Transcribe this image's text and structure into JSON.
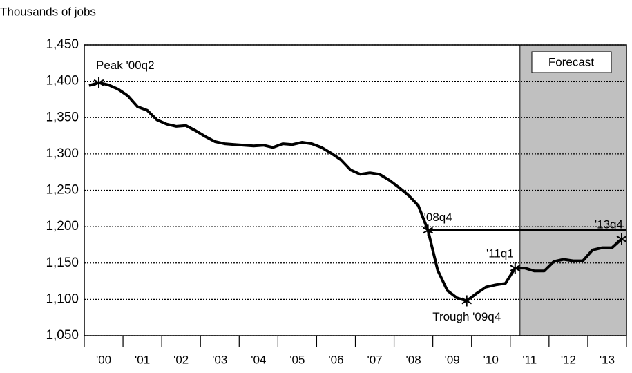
{
  "chart_data": {
    "type": "line",
    "y_axis_title": "Thousands of jobs",
    "xlim": [
      2000,
      2014
    ],
    "xticks": [
      {
        "value": 2000,
        "label": "'00"
      },
      {
        "value": 2001,
        "label": "'01"
      },
      {
        "value": 2002,
        "label": "'02"
      },
      {
        "value": 2003,
        "label": "'03"
      },
      {
        "value": 2004,
        "label": "'04"
      },
      {
        "value": 2005,
        "label": "'05"
      },
      {
        "value": 2006,
        "label": "'06"
      },
      {
        "value": 2007,
        "label": "'07"
      },
      {
        "value": 2008,
        "label": "'08"
      },
      {
        "value": 2009,
        "label": "'09"
      },
      {
        "value": 2010,
        "label": "'10"
      },
      {
        "value": 2011,
        "label": "'11"
      },
      {
        "value": 2012,
        "label": "'12"
      },
      {
        "value": 2013,
        "label": "'13"
      }
    ],
    "ylim": [
      1050,
      1450
    ],
    "yticks": [
      {
        "value": 1050,
        "label": "1,050"
      },
      {
        "value": 1100,
        "label": "1,100"
      },
      {
        "value": 1150,
        "label": "1,150"
      },
      {
        "value": 1200,
        "label": "1,200"
      },
      {
        "value": 1250,
        "label": "1,250"
      },
      {
        "value": 1300,
        "label": "1,300"
      },
      {
        "value": 1350,
        "label": "1,350"
      },
      {
        "value": 1400,
        "label": "1,400"
      },
      {
        "value": 1450,
        "label": "1,450"
      }
    ],
    "grid": true,
    "forecast": {
      "label": "Forecast",
      "start": 2011.25
    },
    "annotations": [
      "Peak '00q2",
      "'08q4",
      "Trough '09q4",
      "'11q1",
      "'13q4"
    ],
    "x": [
      2000.125,
      2000.375,
      2000.625,
      2000.875,
      2001.125,
      2001.375,
      2001.625,
      2001.875,
      2002.125,
      2002.375,
      2002.625,
      2002.875,
      2003.125,
      2003.375,
      2003.625,
      2003.875,
      2004.125,
      2004.375,
      2004.625,
      2004.875,
      2005.125,
      2005.375,
      2005.625,
      2005.875,
      2006.125,
      2006.375,
      2006.625,
      2006.875,
      2007.125,
      2007.375,
      2007.625,
      2007.875,
      2008.125,
      2008.375,
      2008.625,
      2008.875,
      2009.125,
      2009.375,
      2009.625,
      2009.875,
      2010.125,
      2010.375,
      2010.625,
      2010.875,
      2011.125,
      2011.375,
      2011.625,
      2011.875,
      2012.125,
      2012.375,
      2012.625,
      2012.875,
      2013.125,
      2013.375,
      2013.625,
      2013.875
    ],
    "series": [
      {
        "color": "#000000",
        "values": [
          1394,
          1398,
          1395,
          1389,
          1380,
          1365,
          1360,
          1347,
          1341,
          1338,
          1339,
          1332,
          1324,
          1317,
          1314,
          1313,
          1312,
          1311,
          1312,
          1309,
          1314,
          1313,
          1316,
          1314,
          1309,
          1301,
          1292,
          1278,
          1272,
          1274,
          1272,
          1264,
          1254,
          1243,
          1229,
          1195,
          1140,
          1112,
          1102,
          1098,
          1108,
          1117,
          1120,
          1122,
          1143,
          1143,
          1139,
          1139,
          1152,
          1155,
          1153,
          1153,
          1168,
          1171,
          1171,
          1183
        ]
      }
    ]
  }
}
